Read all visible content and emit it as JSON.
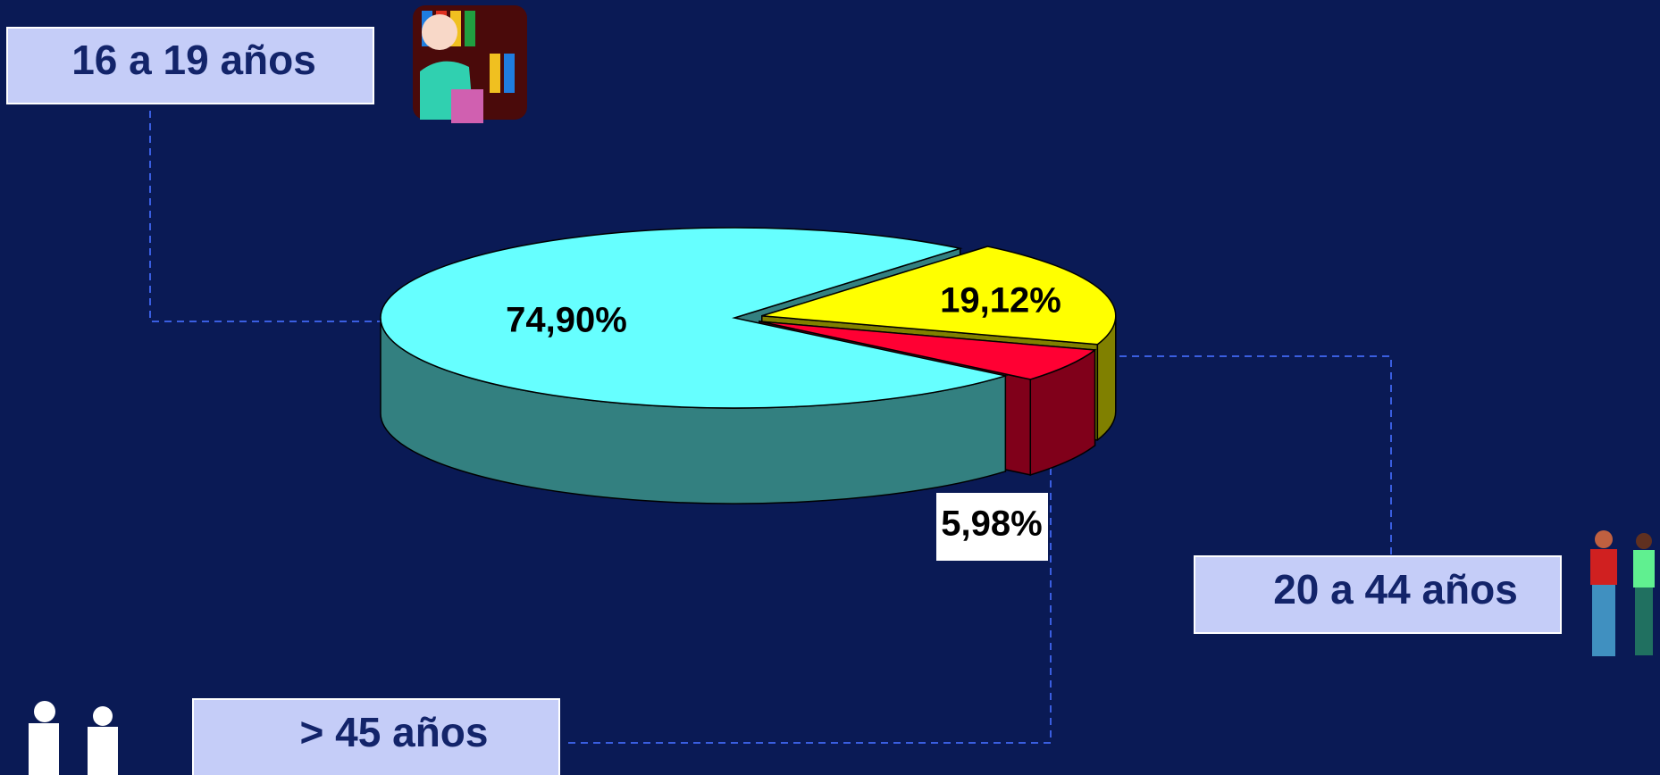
{
  "chart_data": {
    "type": "pie3d",
    "categories": [
      "16 a 19 años",
      "20 a 44 años",
      "> 45 años"
    ],
    "values": [
      74.9,
      19.12,
      5.98
    ],
    "value_labels": [
      "74,90%",
      "19,12%",
      "5,98%"
    ],
    "colors": [
      "#66ffff",
      "#ffff00",
      "#ff0033"
    ]
  }
}
